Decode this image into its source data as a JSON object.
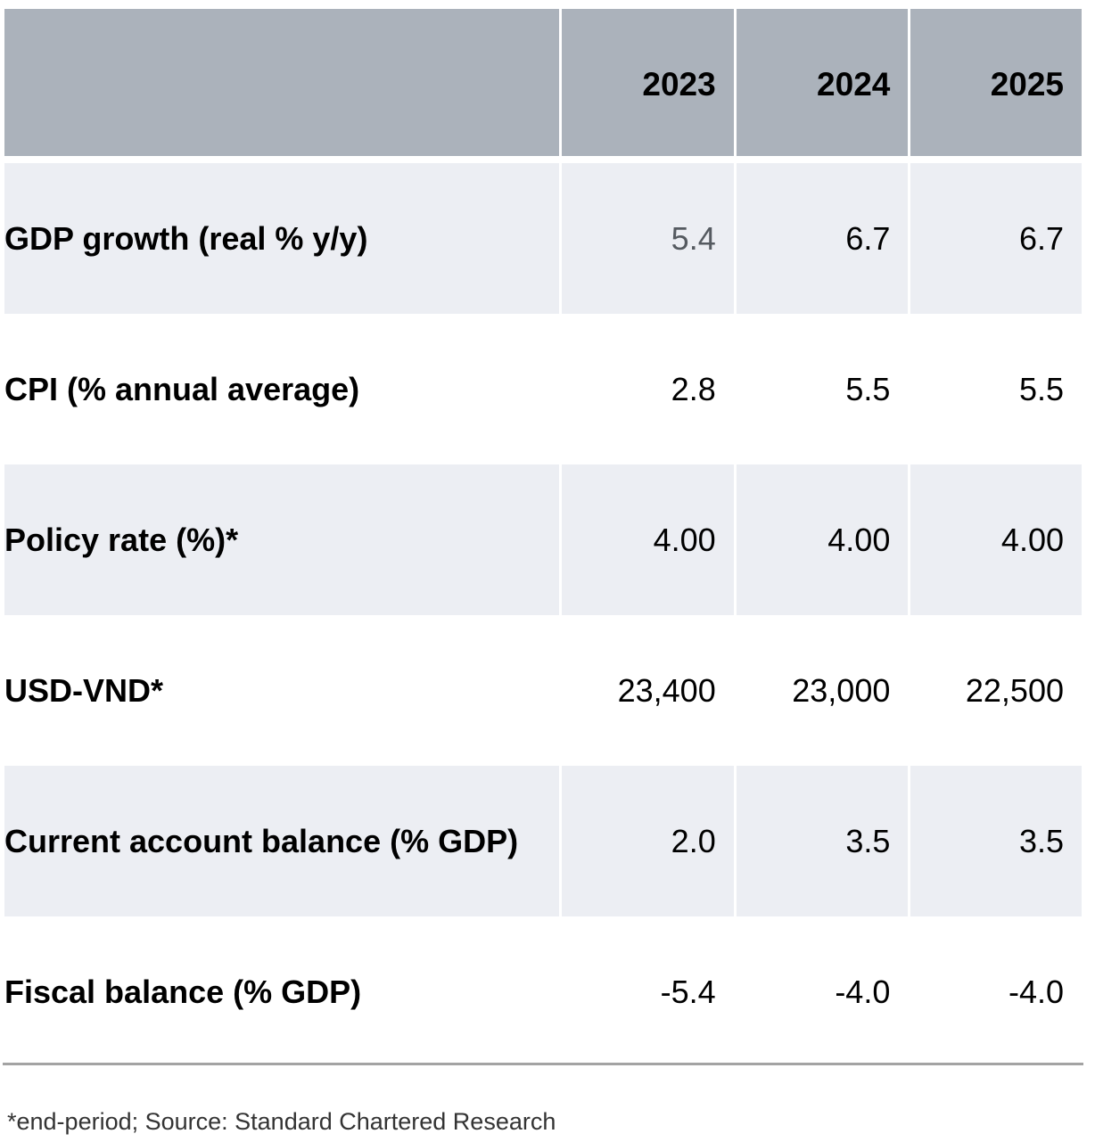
{
  "table": {
    "columns": [
      "2023",
      "2024",
      "2025"
    ],
    "rows": [
      {
        "label": "GDP growth (real % y/y)",
        "values": [
          "5.4",
          "6.7",
          "6.7"
        ]
      },
      {
        "label": "CPI (% annual average)",
        "values": [
          "2.8",
          "5.5",
          "5.5"
        ]
      },
      {
        "label": "Policy rate (%)*",
        "values": [
          "4.00",
          "4.00",
          "4.00"
        ]
      },
      {
        "label": "USD-VND*",
        "values": [
          "23,400",
          "23,000",
          "22,500"
        ]
      },
      {
        "label": "Current account balance (% GDP)",
        "values": [
          "2.0",
          "3.5",
          "3.5"
        ]
      },
      {
        "label": "Fiscal balance (% GDP)",
        "values": [
          "-5.4",
          "-4.0",
          "-4.0"
        ]
      }
    ]
  },
  "footnote": "*end-period; Source: Standard Chartered Research",
  "colors": {
    "header_bg": "#abb2bb",
    "shaded_row_bg": "#eceef3",
    "rule": "#a3a3a3"
  }
}
